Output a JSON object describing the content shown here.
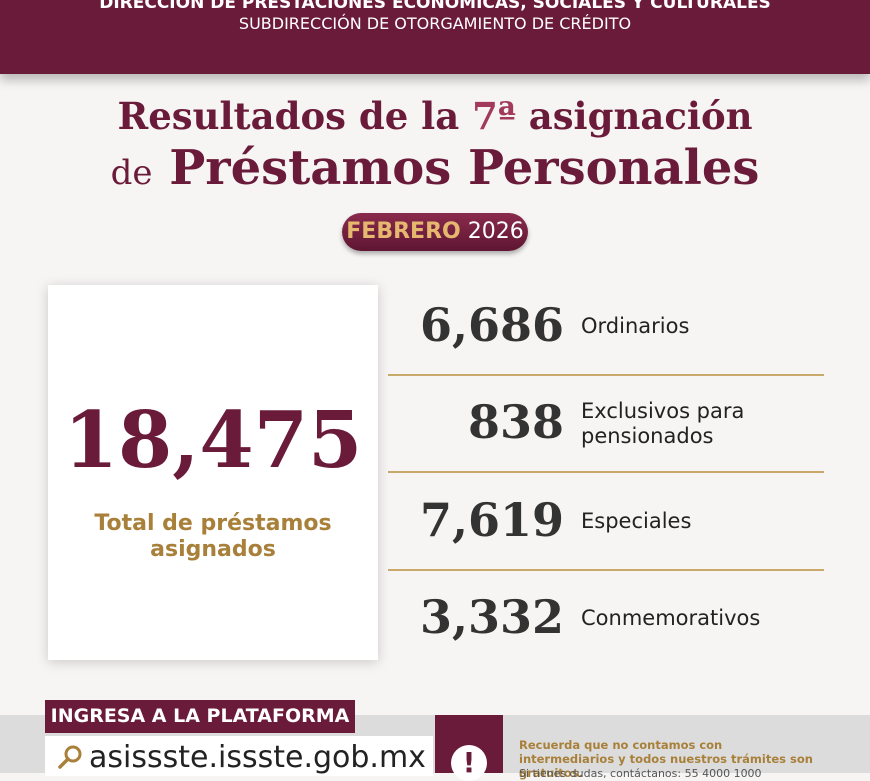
{
  "header": {
    "line1": "DIRECCIÓN DE PRESTACIONES ECONÓMICAS, SOCIALES Y CULTURALES",
    "line2": "SUBDIRECCIÓN DE OTORGAMIENTO DE CRÉDITO"
  },
  "title": {
    "line1": [
      "Resultados de la",
      "7ª",
      "asignación"
    ],
    "line2": [
      "de",
      "Préstamos Personales"
    ]
  },
  "badge": {
    "month": "FEBRERO",
    "year": "2026"
  },
  "total": {
    "value": "18,475",
    "label": "Total de préstamos asignados"
  },
  "items": [
    {
      "value": "6,686",
      "label": "Ordinarios"
    },
    {
      "value": "838",
      "label": "Exclusivos para pensionados"
    },
    {
      "value": "7,619",
      "label": "Especiales"
    },
    {
      "value": "3,332",
      "label": "Conmemorativos"
    }
  ],
  "footer": {
    "cta": "INGRESA A LA PLATAFORMA",
    "url": "asissste.issste.gob.mx",
    "alert": "!",
    "note": "Recuerda que no contamos con intermediarios y todos nuestros trámites son gratuitos.",
    "contact": "Si tienes dudas, contáctanos: 55 4000 1000"
  }
}
